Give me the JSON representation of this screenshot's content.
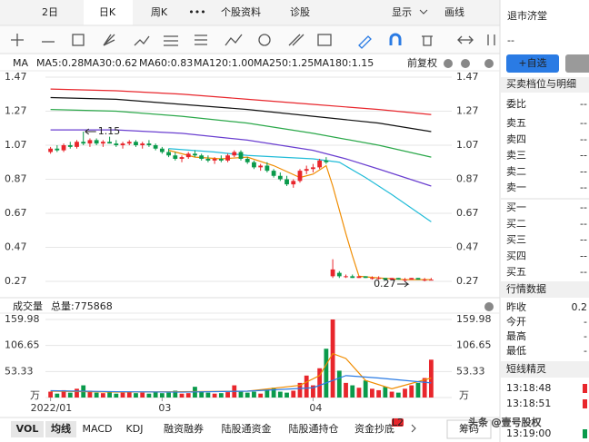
{
  "top_tabs": [
    "2日",
    "日K",
    "周K",
    "•••",
    "个股资料",
    "诊股"
  ],
  "top_right": {
    "display": "显示",
    "draw": "画线"
  },
  "chart_data": {
    "type": "candlestick",
    "indicator_label": "MA",
    "adjust": "前复权",
    "ylim": [
      0.27,
      1.47
    ],
    "yticks": [
      1.47,
      1.27,
      1.07,
      0.87,
      0.67,
      0.47,
      0.27
    ],
    "xlim": [
      0,
      59
    ],
    "ohlc": [
      [
        1.03,
        1.06,
        1.02,
        1.05
      ],
      [
        1.05,
        1.07,
        1.03,
        1.04
      ],
      [
        1.04,
        1.08,
        1.03,
        1.07
      ],
      [
        1.07,
        1.09,
        1.05,
        1.06
      ],
      [
        1.06,
        1.1,
        1.05,
        1.09
      ],
      [
        1.09,
        1.15,
        1.07,
        1.08
      ],
      [
        1.08,
        1.11,
        1.06,
        1.1
      ],
      [
        1.1,
        1.11,
        1.07,
        1.08
      ],
      [
        1.08,
        1.1,
        1.06,
        1.09
      ],
      [
        1.09,
        1.12,
        1.08,
        1.08
      ],
      [
        1.08,
        1.1,
        1.06,
        1.07
      ],
      [
        1.07,
        1.09,
        1.05,
        1.08
      ],
      [
        1.08,
        1.1,
        1.07,
        1.09
      ],
      [
        1.09,
        1.1,
        1.06,
        1.07
      ],
      [
        1.07,
        1.09,
        1.05,
        1.08
      ],
      [
        1.08,
        1.1,
        1.06,
        1.07
      ],
      [
        1.07,
        1.08,
        1.04,
        1.05
      ],
      [
        1.05,
        1.06,
        1.02,
        1.03
      ],
      [
        1.03,
        1.05,
        1.0,
        1.01
      ],
      [
        1.01,
        1.03,
        0.98,
        0.99
      ],
      [
        0.99,
        1.01,
        0.97,
        1.0
      ],
      [
        1.0,
        1.03,
        0.99,
        1.02
      ],
      [
        1.02,
        1.04,
        1.0,
        1.01
      ],
      [
        1.01,
        1.02,
        0.98,
        0.99
      ],
      [
        0.99,
        1.01,
        0.97,
        0.98
      ],
      [
        0.98,
        1.0,
        0.96,
        0.99
      ],
      [
        0.99,
        1.01,
        0.97,
        0.98
      ],
      [
        0.98,
        1.02,
        0.97,
        1.01
      ],
      [
        1.01,
        1.04,
        1.0,
        1.03
      ],
      [
        1.03,
        1.04,
        0.98,
        0.99
      ],
      [
        0.99,
        1.0,
        0.96,
        0.97
      ],
      [
        0.97,
        0.98,
        0.93,
        0.94
      ],
      [
        0.94,
        0.96,
        0.92,
        0.95
      ],
      [
        0.95,
        0.97,
        0.91,
        0.92
      ],
      [
        0.92,
        0.93,
        0.88,
        0.89
      ],
      [
        0.89,
        0.91,
        0.86,
        0.87
      ],
      [
        0.87,
        0.89,
        0.83,
        0.84
      ],
      [
        0.84,
        0.87,
        0.82,
        0.86
      ],
      [
        0.86,
        0.93,
        0.85,
        0.92
      ],
      [
        0.92,
        0.95,
        0.9,
        0.93
      ],
      [
        0.93,
        0.96,
        0.91,
        0.94
      ],
      [
        0.94,
        0.99,
        0.93,
        0.98
      ],
      [
        0.98,
        1.0,
        0.96,
        0.97
      ],
      [
        0.3,
        0.4,
        0.29,
        0.34
      ],
      [
        0.32,
        0.33,
        0.29,
        0.3
      ],
      [
        0.3,
        0.31,
        0.29,
        0.3
      ],
      [
        0.3,
        0.31,
        0.29,
        0.29
      ],
      [
        0.29,
        0.3,
        0.29,
        0.3
      ],
      [
        0.3,
        0.3,
        0.29,
        0.29
      ],
      [
        0.29,
        0.3,
        0.28,
        0.29
      ],
      [
        0.29,
        0.3,
        0.28,
        0.29
      ],
      [
        0.29,
        0.29,
        0.28,
        0.28
      ],
      [
        0.28,
        0.29,
        0.28,
        0.29
      ],
      [
        0.29,
        0.29,
        0.28,
        0.28
      ],
      [
        0.28,
        0.29,
        0.27,
        0.28
      ],
      [
        0.28,
        0.29,
        0.28,
        0.29
      ],
      [
        0.29,
        0.29,
        0.28,
        0.28
      ],
      [
        0.28,
        0.29,
        0.27,
        0.28
      ],
      [
        0.28,
        0.29,
        0.28,
        0.28
      ]
    ],
    "up_color": "#e8262c",
    "down_color": "#0a9a4b",
    "ma": [
      {
        "name": "MA5:0.28",
        "color": "#f08c00",
        "x": [
          18,
          22,
          26,
          30,
          34,
          38,
          40,
          42,
          43,
          44,
          45,
          46,
          47,
          50,
          54,
          58
        ],
        "values": [
          1.04,
          1.0,
          0.99,
          1.0,
          0.95,
          0.88,
          0.9,
          0.95,
          0.83,
          0.69,
          0.55,
          0.42,
          0.3,
          0.29,
          0.28,
          0.28
        ]
      },
      {
        "name": "MA30:0.62",
        "color": "#22bcd8",
        "x": [
          18,
          25,
          30,
          35,
          40,
          44,
          48,
          52,
          58
        ],
        "values": [
          1.05,
          1.03,
          1.01,
          1.0,
          0.99,
          0.97,
          0.88,
          0.78,
          0.62
        ]
      },
      {
        "name": "MA60:0.83",
        "color": "#6a3fd0",
        "x": [
          0,
          10,
          20,
          30,
          40,
          45,
          50,
          58
        ],
        "values": [
          1.16,
          1.16,
          1.14,
          1.1,
          1.04,
          0.99,
          0.93,
          0.83
        ]
      },
      {
        "name": "MA120:1.00",
        "color": "#2ba84a",
        "x": [
          0,
          10,
          20,
          30,
          40,
          50,
          58
        ],
        "values": [
          1.28,
          1.27,
          1.24,
          1.2,
          1.14,
          1.07,
          1.0
        ]
      },
      {
        "name": "MA250:1.25",
        "color": "#e8262c",
        "x": [
          0,
          10,
          20,
          30,
          40,
          50,
          58
        ],
        "values": [
          1.4,
          1.39,
          1.37,
          1.34,
          1.31,
          1.28,
          1.25
        ]
      },
      {
        "name": "MA180:1.15",
        "color": "#111111",
        "x": [
          0,
          10,
          20,
          30,
          40,
          50,
          58
        ],
        "values": [
          1.35,
          1.34,
          1.31,
          1.28,
          1.24,
          1.2,
          1.15
        ]
      }
    ],
    "annotations": [
      {
        "label": "1.15",
        "x": 5,
        "value": 1.15
      },
      {
        "label": "0.27",
        "x": 52,
        "value": 0.27
      }
    ]
  },
  "volume_chart": {
    "type": "bar",
    "title": "成交量",
    "total": "总量:775868",
    "ylim": [
      0,
      159.98
    ],
    "yticks": [
      {
        "value": 0,
        "label": "万"
      },
      53.33,
      106.65,
      159.98
    ],
    "values": [
      12,
      8,
      15,
      10,
      18,
      25,
      14,
      10,
      9,
      12,
      8,
      10,
      11,
      9,
      10,
      8,
      12,
      9,
      10,
      14,
      8,
      9,
      22,
      12,
      10,
      8,
      9,
      11,
      25,
      14,
      10,
      12,
      8,
      16,
      20,
      12,
      10,
      14,
      30,
      45,
      25,
      60,
      100,
      159.98,
      55,
      30,
      25,
      20,
      35,
      18,
      15,
      22,
      12,
      10,
      18,
      25,
      30,
      40,
      77.59
    ],
    "ma": [
      {
        "color": "#f08c00",
        "x": [
          0,
          10,
          20,
          30,
          38,
          41,
          43,
          45,
          48,
          52,
          58
        ],
        "values": [
          13,
          11,
          12,
          13,
          25,
          45,
          90,
          80,
          35,
          18,
          40
        ]
      },
      {
        "color": "#2a7be4",
        "x": [
          0,
          10,
          20,
          30,
          40,
          45,
          50,
          58
        ],
        "values": [
          14,
          12,
          11,
          13,
          20,
          45,
          40,
          30
        ]
      }
    ]
  },
  "date_ticks": [
    {
      "value": 0,
      "label": "2022/01"
    },
    {
      "value": 17,
      "label": "03"
    },
    {
      "value": 40,
      "label": "04"
    }
  ],
  "bottom_tabs": [
    "VOL",
    "均线",
    "MACD",
    "KDJ",
    "融资融券",
    "陆股通资金",
    "陆股通持仓",
    "资金抄底"
  ],
  "bottom_badge": "L2",
  "chips": "筹码",
  "panel": {
    "title": "退市济堂",
    "code": "--",
    "add_button": "+自选",
    "order_header": "买卖档位与明细",
    "ratio": {
      "label": "委比",
      "value": "--"
    },
    "sell": [
      {
        "label": "卖五",
        "value": "--"
      },
      {
        "label": "卖四",
        "value": "--"
      },
      {
        "label": "卖三",
        "value": "--"
      },
      {
        "label": "卖二",
        "value": "--"
      },
      {
        "label": "卖一",
        "value": "--"
      }
    ],
    "buy": [
      {
        "label": "买一",
        "value": "--"
      },
      {
        "label": "买二",
        "value": "--"
      },
      {
        "label": "买三",
        "value": "--"
      },
      {
        "label": "买四",
        "value": "--"
      },
      {
        "label": "买五",
        "value": "--"
      }
    ],
    "quote_header": "行情数据",
    "quote": [
      {
        "label": "昨收",
        "value": "0.2"
      },
      {
        "label": "今开",
        "value": "-"
      },
      {
        "label": "最高",
        "value": "-"
      },
      {
        "label": "最低",
        "value": "-"
      }
    ],
    "spirit_header": "短线精灵",
    "times": [
      "13:18:48",
      "13:18:51",
      "13:19:00"
    ]
  },
  "watermark": "头条 @壹号股权"
}
